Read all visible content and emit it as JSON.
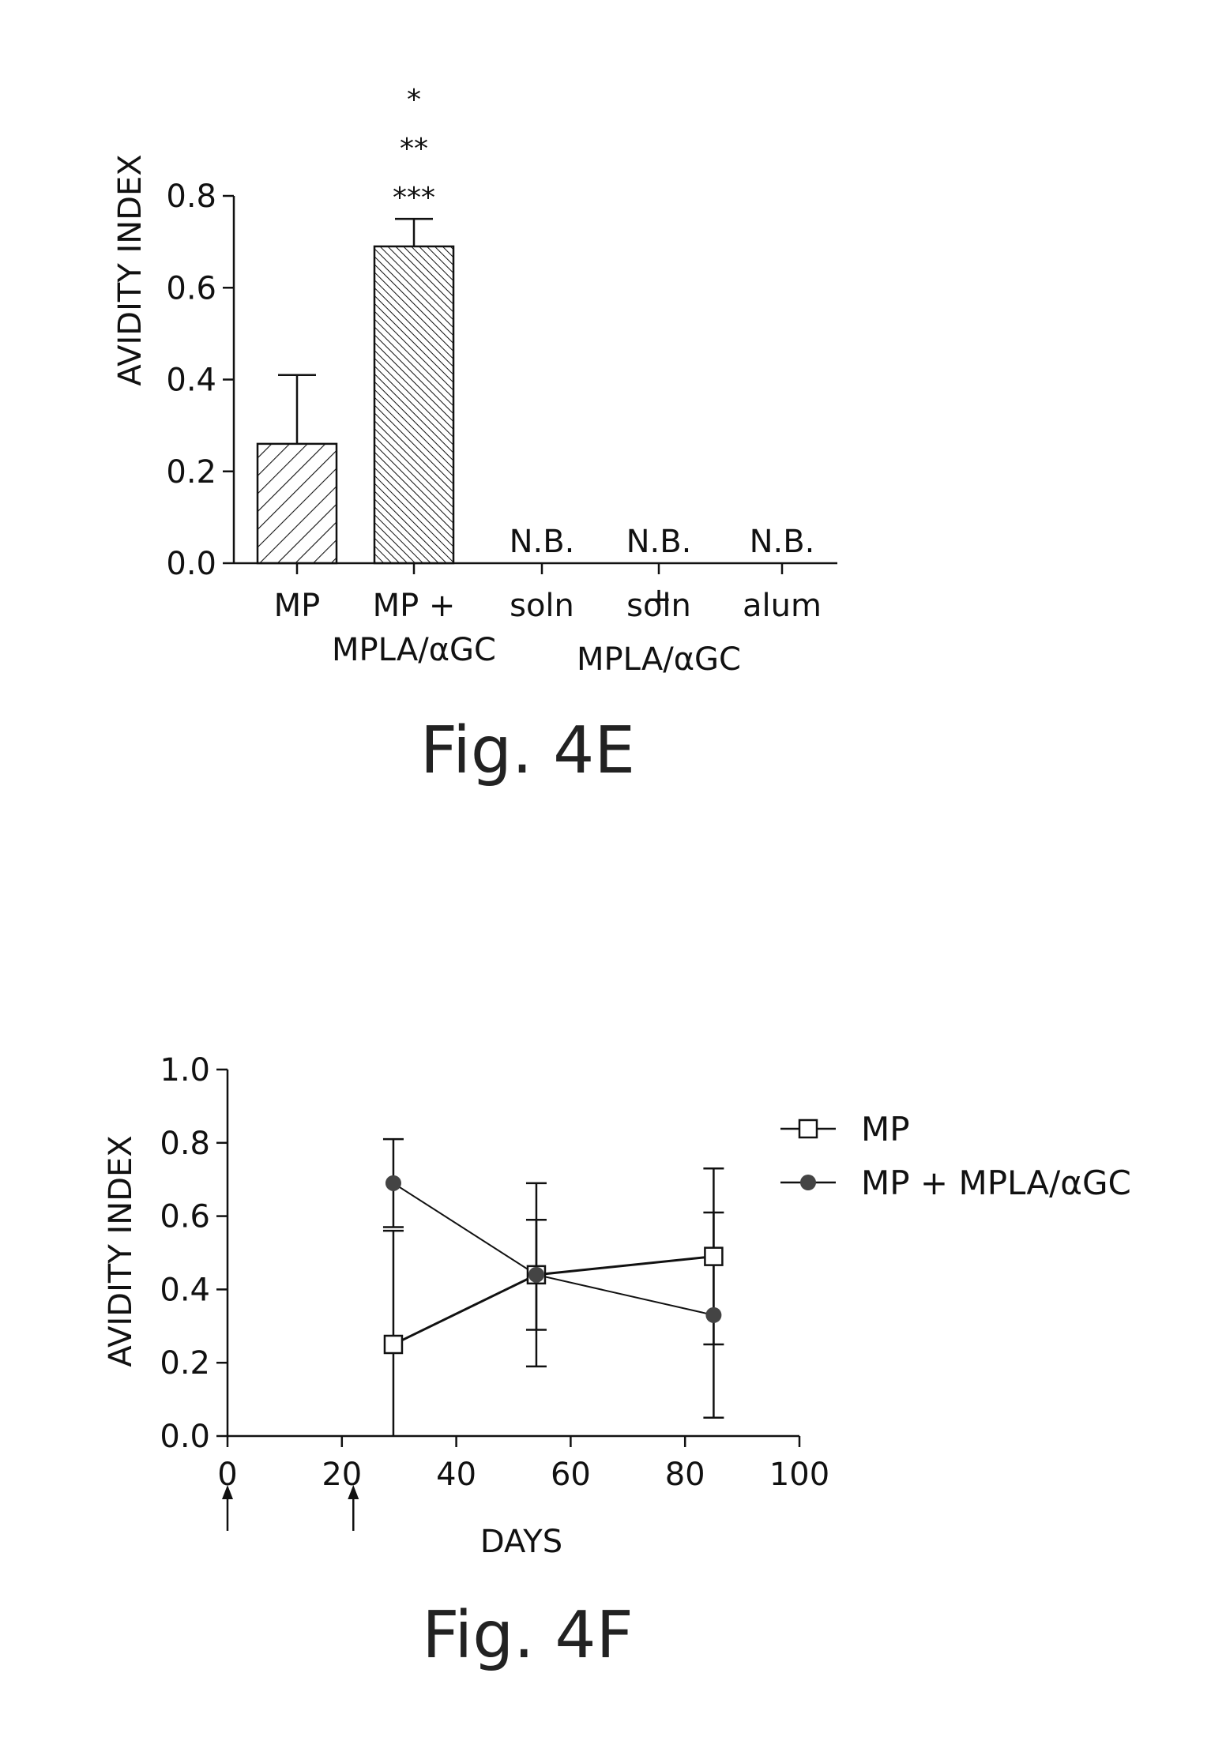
{
  "chart_data": [
    {
      "type": "bar",
      "ylabel": "AVIDITY INDEX",
      "ylim": [
        0,
        0.8
      ],
      "yticks": [
        "0.0",
        "0.2",
        "0.4",
        "0.6",
        "0.8"
      ],
      "categories": [
        {
          "lines": [
            "MP"
          ]
        },
        {
          "lines": [
            "MP +",
            "MPLA/αGC"
          ]
        },
        {
          "lines": [
            "soln"
          ]
        },
        {
          "lines": [
            "soln",
            "+",
            "MPLA/αGC"
          ]
        },
        {
          "lines": [
            "alum"
          ]
        }
      ],
      "values": [
        0.26,
        0.69,
        null,
        null,
        null
      ],
      "errors": [
        0.15,
        0.06,
        null,
        null,
        null
      ],
      "bar_labels": [
        "",
        "",
        "N.B.",
        "N.B.",
        "N.B."
      ],
      "significance": [
        "*",
        "**",
        "***"
      ],
      "caption": "Fig. 4E"
    },
    {
      "type": "line",
      "xlabel": "DAYS",
      "ylabel": "AVIDITY INDEX",
      "xlim": [
        0,
        100
      ],
      "ylim": [
        0,
        1.0
      ],
      "xticks": [
        "0",
        "20",
        "40",
        "60",
        "80",
        "100"
      ],
      "yticks": [
        "0.0",
        "0.2",
        "0.4",
        "0.6",
        "0.8",
        "1.0"
      ],
      "arrow_days": [
        0,
        22
      ],
      "series": [
        {
          "name": "MP",
          "marker": "open-square",
          "x": [
            29,
            54,
            85
          ],
          "y": [
            0.25,
            0.44,
            0.49
          ],
          "err": [
            0.31,
            0.25,
            0.24
          ]
        },
        {
          "name": "MP + MPLA/αGC",
          "marker": "filled-circle",
          "x": [
            29,
            54,
            85
          ],
          "y": [
            0.69,
            0.44,
            0.33
          ],
          "err": [
            0.12,
            0.15,
            0.28
          ]
        }
      ],
      "caption": "Fig. 4F"
    }
  ]
}
